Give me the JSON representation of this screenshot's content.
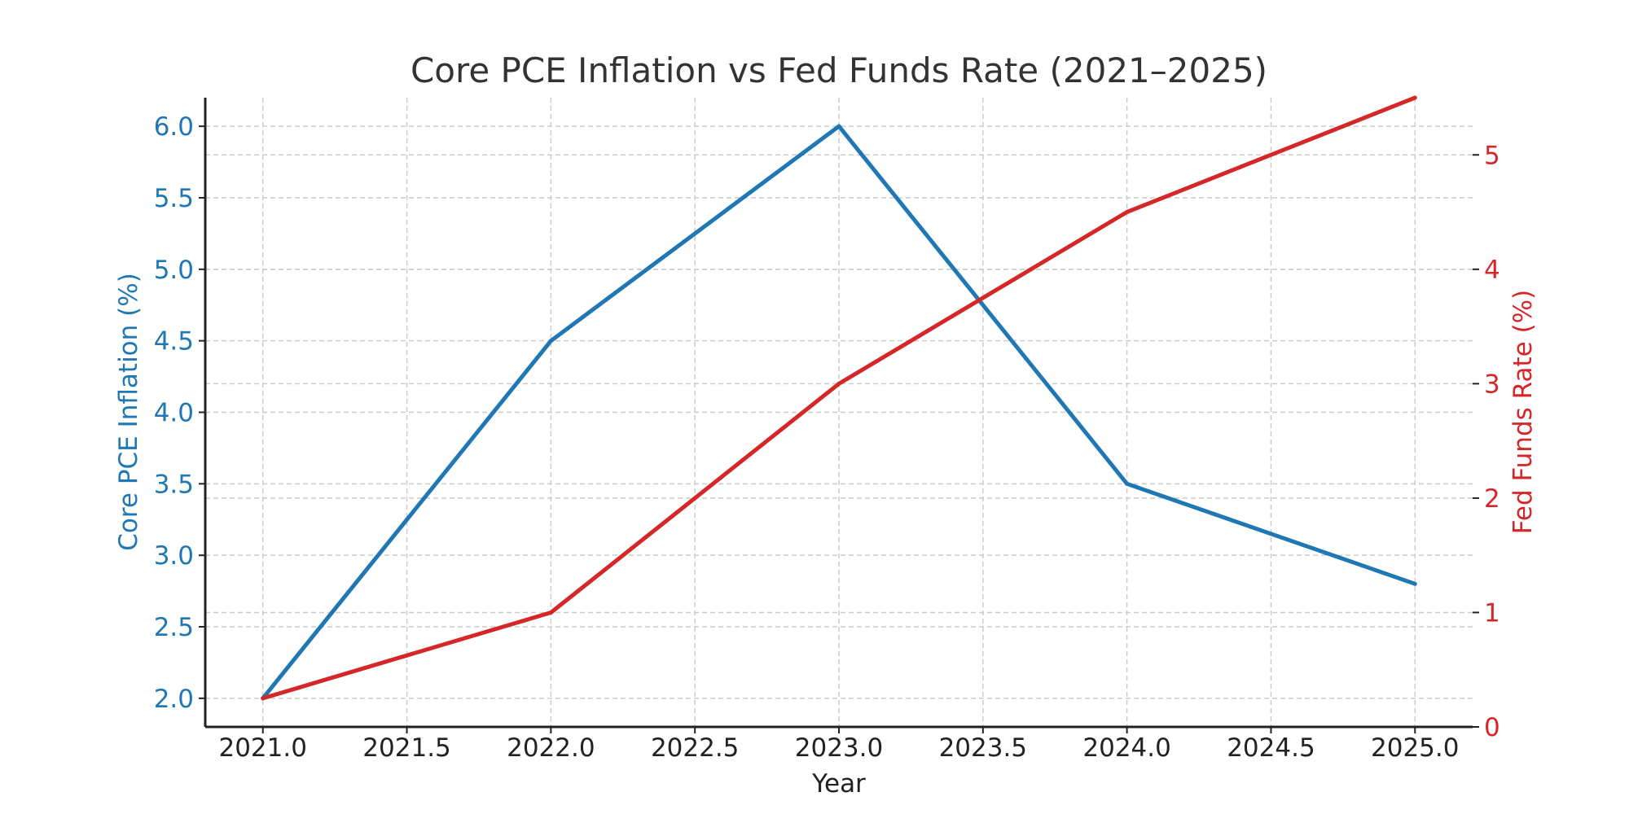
{
  "chart_data": {
    "type": "line",
    "title": "Core PCE Inflation vs Fed Funds Rate (2021–2025)",
    "xlabel": "Year",
    "x": [
      2021,
      2022,
      2023,
      2024,
      2025
    ],
    "x_ticks": [
      "2021.0",
      "2021.5",
      "2022.0",
      "2022.5",
      "2023.0",
      "2023.5",
      "2024.0",
      "2024.5",
      "2025.0"
    ],
    "x_tick_values": [
      2021.0,
      2021.5,
      2022.0,
      2022.5,
      2023.0,
      2023.5,
      2024.0,
      2024.5,
      2025.0
    ],
    "xlim": [
      2020.8,
      2025.2
    ],
    "y_left": {
      "label": "Core PCE Inflation (%)",
      "ticks": [
        "2.0",
        "2.5",
        "3.0",
        "3.5",
        "4.0",
        "4.5",
        "5.0",
        "5.5",
        "6.0"
      ],
      "tick_values": [
        2.0,
        2.5,
        3.0,
        3.5,
        4.0,
        4.5,
        5.0,
        5.5,
        6.0
      ],
      "ylim": [
        1.8,
        6.2
      ],
      "color": "#1f77b4"
    },
    "y_right": {
      "label": "Fed Funds Rate (%)",
      "ticks": [
        "0",
        "1",
        "2",
        "3",
        "4",
        "5"
      ],
      "tick_values": [
        0,
        1,
        2,
        3,
        4,
        5
      ],
      "ylim": [
        0,
        5.5
      ],
      "color": "#d62728"
    },
    "series": [
      {
        "axis": "left",
        "color": "#1f77b4",
        "values": [
          2.0,
          4.5,
          6.0,
          3.5,
          2.8
        ]
      },
      {
        "axis": "right",
        "color": "#d62728",
        "values": [
          0.25,
          1.0,
          3.0,
          4.5,
          5.5
        ]
      }
    ],
    "grid": true
  }
}
